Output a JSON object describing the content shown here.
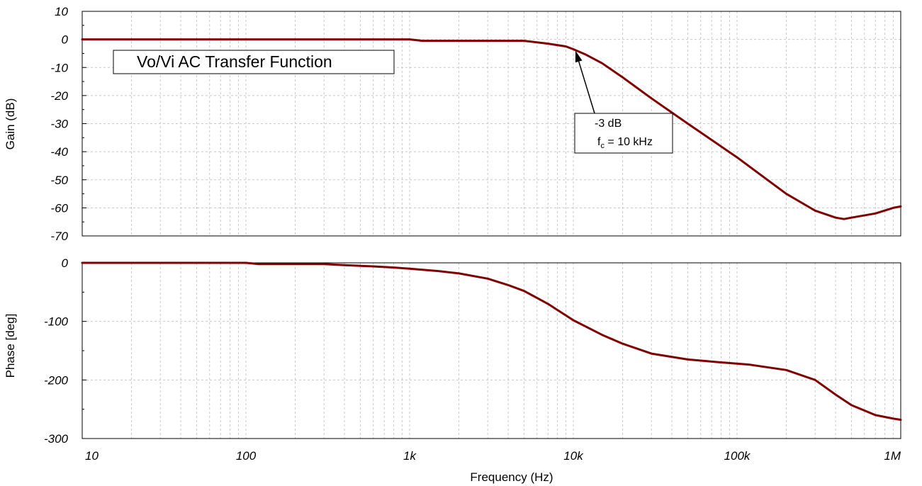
{
  "colors": {
    "curve": "#800000",
    "grid": "#c8c8c8",
    "frame": "#000000"
  },
  "chart_data": [
    {
      "type": "line",
      "panel": "gain",
      "ylabel": "Gain (dB)",
      "xscale": "log",
      "xlim": [
        10,
        1000000
      ],
      "ylim": [
        -70,
        10
      ],
      "yticks": [
        10,
        0,
        -10,
        -20,
        -30,
        -40,
        -50,
        -60,
        -70
      ],
      "grid": true,
      "title": "Vo/Vi AC Transfer Function",
      "annotation": {
        "line1": "-3 dB",
        "line2_main": "f",
        "line2_sub": "c",
        "line2_rest": " = 10 kHz",
        "x": 10000,
        "y": -3
      },
      "series": [
        {
          "x": [
            10,
            100,
            1000,
            1200,
            5000,
            7000,
            9000,
            10000,
            12000,
            15000,
            20000,
            30000,
            50000,
            100000,
            200000,
            300000,
            400000,
            450000,
            500000,
            700000,
            900000,
            1000000
          ],
          "y": [
            0,
            0,
            0,
            -0.5,
            -0.5,
            -1.5,
            -2.5,
            -3.5,
            -5.5,
            -8.5,
            -13.5,
            -21,
            -30,
            -42,
            -55,
            -61,
            -63.5,
            -64,
            -63.5,
            -62,
            -60,
            -59.5
          ]
        }
      ]
    },
    {
      "type": "line",
      "panel": "phase",
      "ylabel": "Phase [deg]",
      "xlabel": "Frequency (Hz)",
      "xscale": "log",
      "xlim": [
        10,
        1000000
      ],
      "ylim": [
        -300,
        0
      ],
      "yticks": [
        0,
        -100,
        -200,
        -300
      ],
      "xticks": [
        10,
        100,
        1000,
        10000,
        100000,
        1000000
      ],
      "xticklabels": [
        "10",
        "100",
        "1k",
        "10k",
        "100k",
        "1M"
      ],
      "grid": true,
      "series": [
        {
          "x": [
            10,
            100,
            120,
            300,
            400,
            600,
            800,
            1000,
            1500,
            2000,
            3000,
            4000,
            5000,
            7000,
            10000,
            15000,
            20000,
            30000,
            50000,
            80000,
            120000,
            200000,
            300000,
            400000,
            500000,
            700000,
            900000,
            1000000
          ],
          "y": [
            0,
            0,
            -2,
            -2,
            -4,
            -6,
            -8,
            -10,
            -14,
            -18,
            -27,
            -38,
            -48,
            -70,
            -98,
            -123,
            -138,
            -155,
            -165,
            -170,
            -174,
            -183,
            -200,
            -225,
            -243,
            -260,
            -266,
            -268
          ]
        }
      ]
    }
  ]
}
